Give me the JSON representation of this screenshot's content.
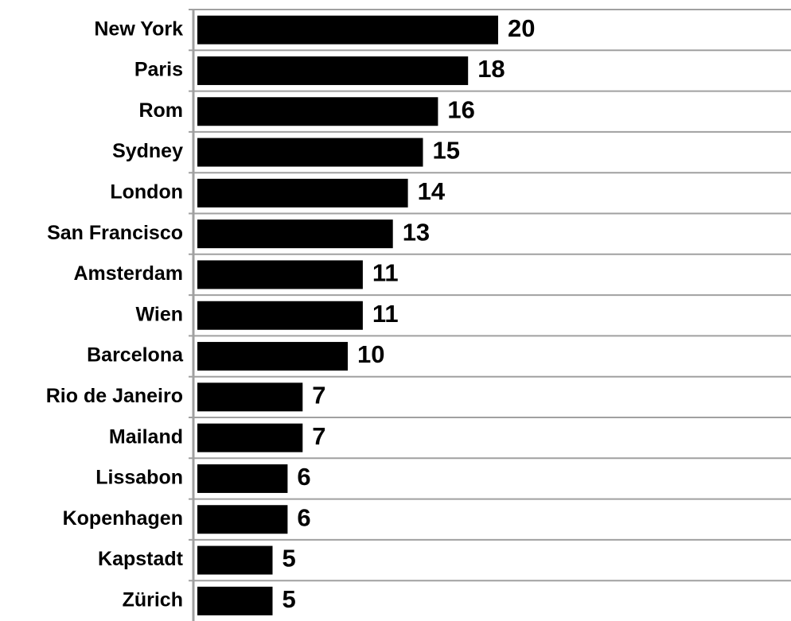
{
  "chart_data": {
    "type": "barh",
    "categories": [
      "New York",
      "Paris",
      "Rom",
      "Sydney",
      "London",
      "San Francisco",
      "Amsterdam",
      "Wien",
      "Barcelona",
      "Rio de Janeiro",
      "Mailand",
      "Lissabon",
      "Kopenhagen",
      "Kapstadt",
      "Zürich"
    ],
    "values": [
      20,
      18,
      16,
      15,
      14,
      13,
      11,
      11,
      10,
      7,
      7,
      6,
      6,
      5,
      5
    ],
    "color": "#000000"
  }
}
